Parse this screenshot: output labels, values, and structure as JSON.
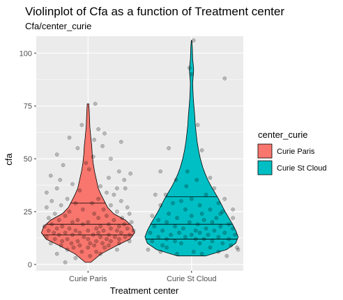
{
  "chart_data": {
    "type": "violin",
    "title": "Violinplot of Cfa as a function of Treatment center",
    "subtitle": "Cfa/center_curie",
    "xlabel": "Treatment center",
    "ylabel": "cfa",
    "categories": [
      "Curie Paris",
      "Curie St Cloud"
    ],
    "ylim": [
      -3,
      108
    ],
    "yticks": [
      0,
      25,
      50,
      75,
      100
    ],
    "grid": true,
    "legend": {
      "title": "center_curie",
      "position": "right",
      "entries": [
        {
          "label": "Curie Paris",
          "color": "#F8766D"
        },
        {
          "label": "Curie St Cloud",
          "color": "#00BFC4"
        }
      ]
    },
    "series": [
      {
        "category": "Curie Paris",
        "color": "#F8766D",
        "quantiles": [
          14,
          19,
          29
        ],
        "range": [
          1,
          76
        ],
        "density": [
          [
            1,
            0.06
          ],
          [
            5,
            0.28
          ],
          [
            9,
            0.62
          ],
          [
            12,
            0.9
          ],
          [
            15,
            1.0
          ],
          [
            18,
            0.95
          ],
          [
            21,
            0.8
          ],
          [
            24,
            0.55
          ],
          [
            27,
            0.42
          ],
          [
            30,
            0.35
          ],
          [
            33,
            0.28
          ],
          [
            36,
            0.22
          ],
          [
            40,
            0.18
          ],
          [
            44,
            0.14
          ],
          [
            48,
            0.11
          ],
          [
            52,
            0.09
          ],
          [
            56,
            0.08
          ],
          [
            60,
            0.06
          ],
          [
            65,
            0.04
          ],
          [
            70,
            0.03
          ],
          [
            73,
            0.025
          ],
          [
            76,
            0.015
          ]
        ],
        "points": [
          [
            0.07,
            76
          ],
          [
            -0.06,
            66
          ],
          [
            0.1,
            64
          ],
          [
            -0.18,
            60
          ],
          [
            0.06,
            59
          ],
          [
            0.14,
            56
          ],
          [
            -0.1,
            55
          ],
          [
            0.32,
            58
          ],
          [
            -0.3,
            52
          ],
          [
            0.22,
            50
          ],
          [
            -0.24,
            47
          ],
          [
            0.01,
            45
          ],
          [
            0.3,
            44
          ],
          [
            -0.36,
            42
          ],
          [
            0.41,
            43
          ],
          [
            0.35,
            40
          ],
          [
            -0.27,
            40
          ],
          [
            0.2,
            41
          ],
          [
            -0.15,
            38
          ],
          [
            0.12,
            37
          ],
          [
            -0.3,
            36
          ],
          [
            0.28,
            36
          ],
          [
            0.18,
            34
          ],
          [
            -0.08,
            35
          ],
          [
            -0.4,
            34
          ],
          [
            0.25,
            33
          ],
          [
            -0.2,
            31
          ],
          [
            0.1,
            31
          ],
          [
            0.32,
            30
          ],
          [
            -0.35,
            30
          ],
          [
            0.04,
            29
          ],
          [
            -0.12,
            29
          ],
          [
            0.22,
            28
          ],
          [
            -0.26,
            28
          ],
          [
            0.38,
            27
          ],
          [
            -0.4,
            27
          ],
          [
            0.15,
            26
          ],
          [
            -0.05,
            26
          ],
          [
            0.28,
            25
          ],
          [
            -0.18,
            25
          ],
          [
            0.4,
            24
          ],
          [
            -0.32,
            24
          ],
          [
            0.06,
            24
          ],
          [
            -0.22,
            23
          ],
          [
            0.18,
            23
          ],
          [
            0.33,
            22
          ],
          [
            -0.38,
            22
          ],
          [
            0.1,
            22
          ],
          [
            -0.1,
            21
          ],
          [
            0.25,
            21
          ],
          [
            -0.28,
            21
          ],
          [
            0.42,
            20
          ],
          [
            0.0,
            20
          ],
          [
            -0.15,
            20
          ],
          [
            0.2,
            19
          ],
          [
            -0.35,
            19
          ],
          [
            0.35,
            19
          ],
          [
            -0.05,
            19
          ],
          [
            0.12,
            18
          ],
          [
            -0.25,
            18
          ],
          [
            0.3,
            18
          ],
          [
            -0.42,
            18
          ],
          [
            0.08,
            17
          ],
          [
            -0.18,
            17
          ],
          [
            0.22,
            17
          ],
          [
            0.38,
            17
          ],
          [
            -0.3,
            17
          ],
          [
            0.0,
            16
          ],
          [
            -0.12,
            16
          ],
          [
            0.15,
            16
          ],
          [
            0.28,
            16
          ],
          [
            -0.38,
            16
          ],
          [
            0.44,
            16
          ],
          [
            -0.08,
            15
          ],
          [
            0.1,
            15
          ],
          [
            -0.22,
            15
          ],
          [
            0.32,
            15
          ],
          [
            -0.33,
            15
          ],
          [
            0.05,
            14
          ],
          [
            -0.15,
            14
          ],
          [
            0.2,
            14
          ],
          [
            0.4,
            14
          ],
          [
            -0.28,
            14
          ],
          [
            0.12,
            13
          ],
          [
            -0.04,
            13
          ],
          [
            0.26,
            13
          ],
          [
            -0.4,
            13
          ],
          [
            0.36,
            13
          ],
          [
            0.0,
            12
          ],
          [
            -0.2,
            12
          ],
          [
            0.18,
            12
          ],
          [
            -0.32,
            12
          ],
          [
            0.3,
            12
          ],
          [
            0.08,
            11
          ],
          [
            -0.1,
            11
          ],
          [
            0.22,
            11
          ],
          [
            -0.25,
            11
          ],
          [
            0.4,
            11
          ],
          [
            0.02,
            10
          ],
          [
            -0.16,
            10
          ],
          [
            0.14,
            10
          ],
          [
            0.3,
            10
          ],
          [
            -0.36,
            10
          ],
          [
            0.06,
            9
          ],
          [
            -0.08,
            9
          ],
          [
            0.2,
            9
          ],
          [
            -0.26,
            9
          ],
          [
            0.0,
            8
          ],
          [
            0.16,
            8
          ],
          [
            -0.14,
            8
          ],
          [
            0.28,
            7
          ],
          [
            -0.2,
            7
          ],
          [
            0.08,
            6
          ],
          [
            -0.06,
            6
          ],
          [
            0.12,
            5
          ],
          [
            -0.3,
            5
          ],
          [
            0.02,
            4
          ],
          [
            -0.12,
            3
          ],
          [
            -0.22,
            1
          ],
          [
            0.36,
            36
          ],
          [
            0.05,
            51
          ],
          [
            0.16,
            62
          ],
          [
            -0.02,
            48
          ]
        ]
      },
      {
        "category": "Curie St Cloud",
        "color": "#00BFC4",
        "quantiles": [
          12,
          19,
          32
        ],
        "range": [
          4,
          106
        ],
        "density": [
          [
            4,
            0.3
          ],
          [
            7,
            0.75
          ],
          [
            10,
            0.95
          ],
          [
            13,
            1.0
          ],
          [
            16,
            0.95
          ],
          [
            19,
            0.88
          ],
          [
            22,
            0.8
          ],
          [
            25,
            0.72
          ],
          [
            28,
            0.65
          ],
          [
            31,
            0.58
          ],
          [
            34,
            0.5
          ],
          [
            37,
            0.42
          ],
          [
            40,
            0.35
          ],
          [
            43,
            0.29
          ],
          [
            46,
            0.24
          ],
          [
            50,
            0.19
          ],
          [
            54,
            0.15
          ],
          [
            58,
            0.12
          ],
          [
            62,
            0.1
          ],
          [
            66,
            0.08
          ],
          [
            70,
            0.07
          ],
          [
            74,
            0.055
          ],
          [
            78,
            0.04
          ],
          [
            82,
            0.03
          ],
          [
            86,
            0.025
          ],
          [
            90,
            0.04
          ],
          [
            92,
            0.045
          ],
          [
            94,
            0.04
          ],
          [
            97,
            0.025
          ],
          [
            100,
            0.02
          ],
          [
            103,
            0.015
          ],
          [
            106,
            0.005
          ]
        ],
        "points": [
          [
            0.02,
            106
          ],
          [
            0.32,
            88
          ],
          [
            -0.02,
            93
          ],
          [
            0.0,
            90
          ],
          [
            -0.22,
            55
          ],
          [
            0.1,
            54
          ],
          [
            -0.3,
            44
          ],
          [
            0.18,
            41
          ],
          [
            -0.15,
            40
          ],
          [
            0.05,
            40
          ],
          [
            -0.05,
            37
          ],
          [
            0.22,
            36
          ],
          [
            -0.25,
            33
          ],
          [
            0.14,
            33
          ],
          [
            -0.35,
            33
          ],
          [
            0.32,
            31
          ],
          [
            0.0,
            31
          ],
          [
            -0.1,
            30
          ],
          [
            0.26,
            29
          ],
          [
            -0.18,
            29
          ],
          [
            0.08,
            28
          ],
          [
            -0.3,
            28
          ],
          [
            0.4,
            26
          ],
          [
            0.18,
            26
          ],
          [
            -0.06,
            26
          ],
          [
            0.3,
            25
          ],
          [
            -0.22,
            24
          ],
          [
            0.1,
            24
          ],
          [
            -0.38,
            23
          ],
          [
            0.0,
            23
          ],
          [
            0.24,
            22
          ],
          [
            -0.14,
            22
          ],
          [
            0.4,
            22
          ],
          [
            -0.32,
            21
          ],
          [
            0.12,
            21
          ],
          [
            -0.02,
            20
          ],
          [
            0.2,
            20
          ],
          [
            -0.24,
            20
          ],
          [
            0.36,
            19
          ],
          [
            0.06,
            19
          ],
          [
            -0.16,
            18
          ],
          [
            0.28,
            18
          ],
          [
            -0.36,
            18
          ],
          [
            0.14,
            17
          ],
          [
            -0.08,
            17
          ],
          [
            0.4,
            17
          ],
          [
            0.04,
            16
          ],
          [
            -0.28,
            16
          ],
          [
            0.22,
            16
          ],
          [
            -0.12,
            15
          ],
          [
            0.32,
            15
          ],
          [
            0.08,
            15
          ],
          [
            -0.4,
            15
          ],
          [
            0.16,
            14
          ],
          [
            -0.2,
            14
          ],
          [
            0.42,
            14
          ],
          [
            0.0,
            14
          ],
          [
            -0.32,
            13
          ],
          [
            0.26,
            13
          ],
          [
            -0.06,
            13
          ],
          [
            0.12,
            12
          ],
          [
            -0.24,
            12
          ],
          [
            0.36,
            12
          ],
          [
            0.04,
            12
          ],
          [
            -0.16,
            11
          ],
          [
            0.2,
            11
          ],
          [
            -0.38,
            11
          ],
          [
            0.3,
            10
          ],
          [
            -0.1,
            10
          ],
          [
            0.08,
            10
          ],
          [
            0.38,
            9
          ],
          [
            -0.28,
            9
          ],
          [
            0.44,
            8
          ],
          [
            0.18,
            8
          ],
          [
            -0.42,
            7
          ],
          [
            0.45,
            7
          ],
          [
            0.02,
            6
          ],
          [
            -0.3,
            6
          ],
          [
            0.26,
            6
          ],
          [
            -0.14,
            5
          ],
          [
            0.1,
            5
          ],
          [
            0.34,
            4
          ],
          [
            -0.24,
            8
          ],
          [
            0.28,
            24
          ],
          [
            -0.04,
            44
          ],
          [
            0.06,
            66
          ]
        ]
      }
    ]
  }
}
